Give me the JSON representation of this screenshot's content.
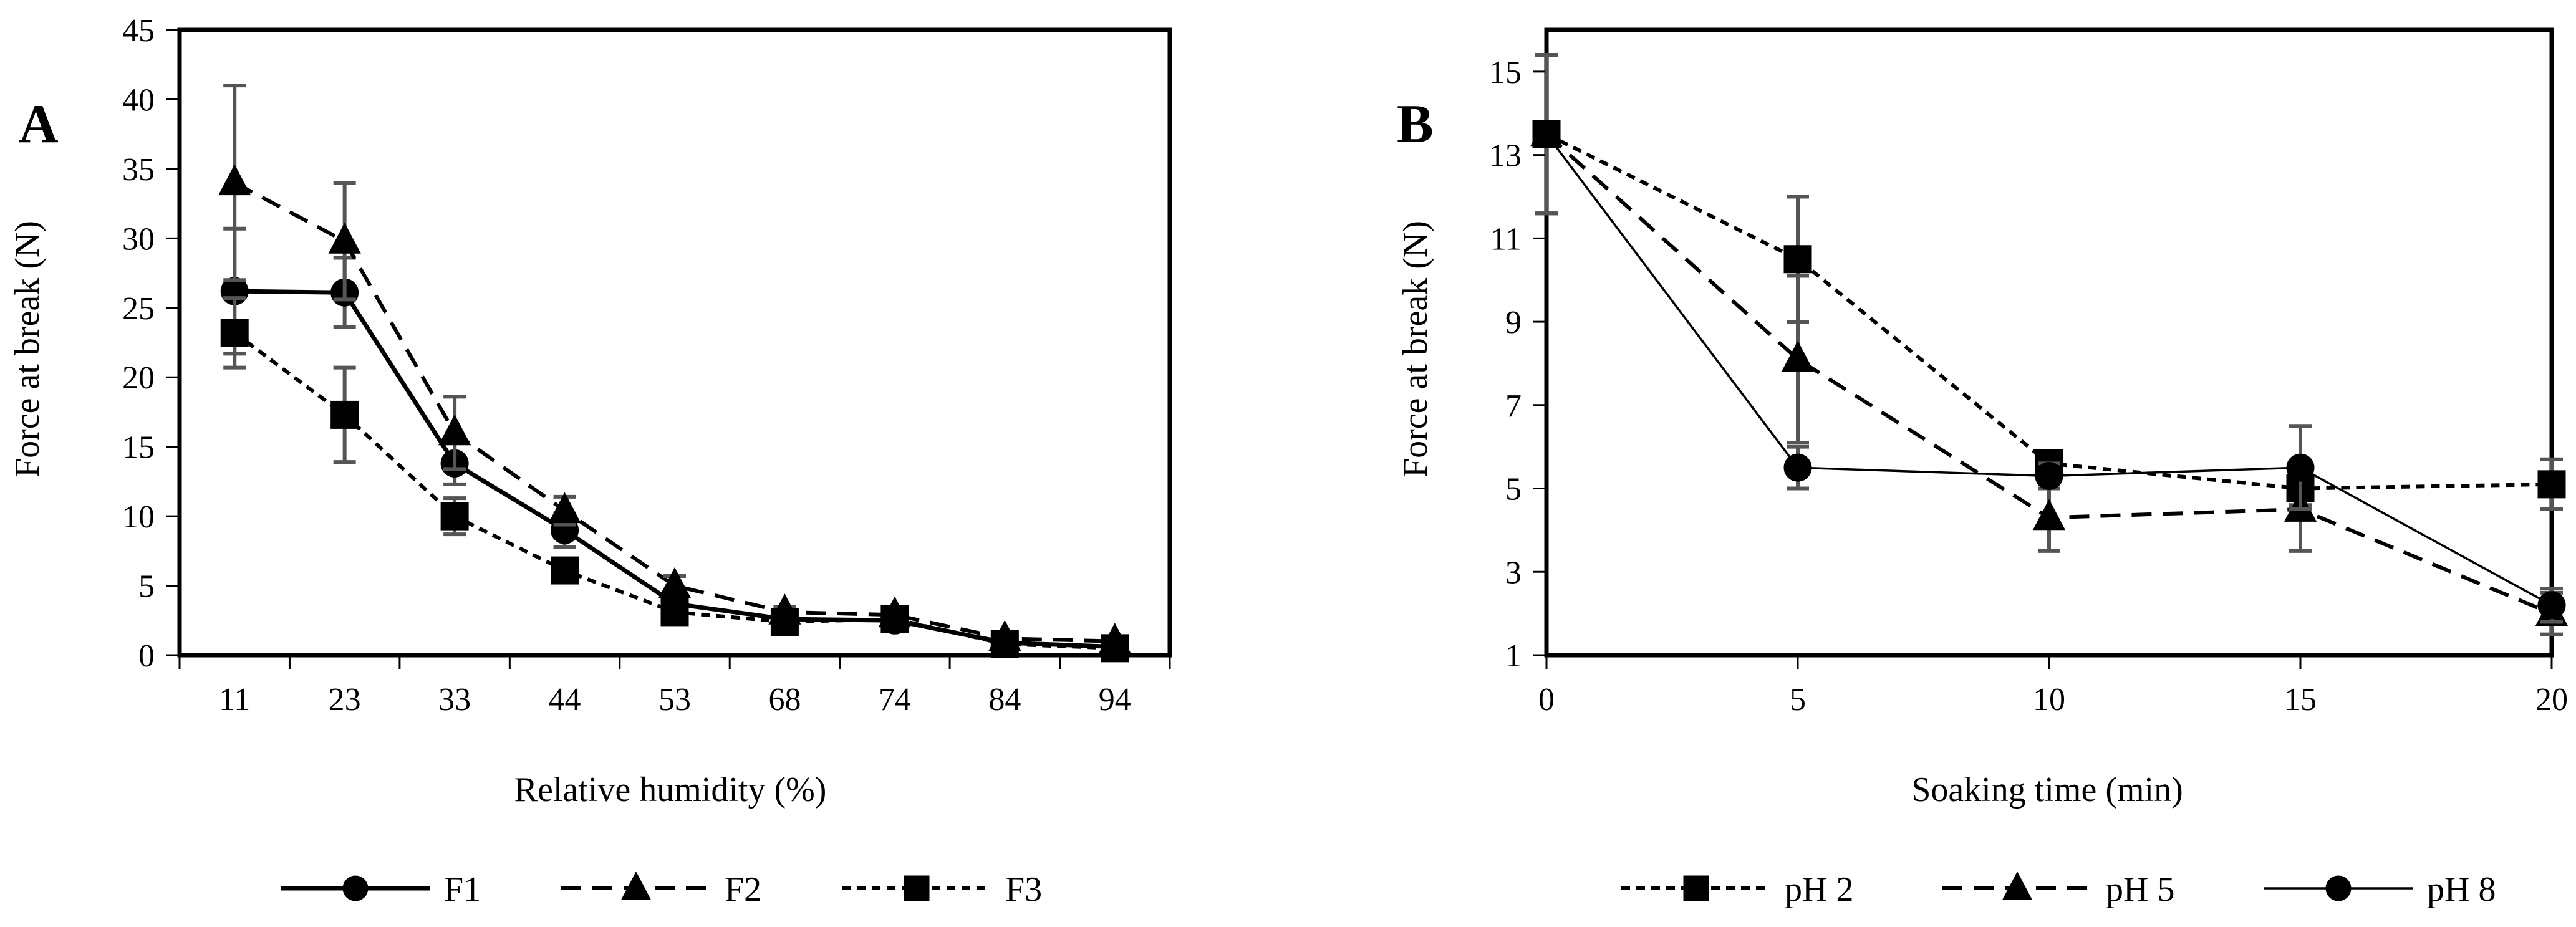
{
  "chart_data": [
    {
      "panel": "A",
      "type": "line",
      "xlabel": "Relative humidity (%)",
      "ylabel": "Force at break  (N)",
      "categories": [
        "11",
        "23",
        "33",
        "44",
        "53",
        "68",
        "74",
        "84",
        "94"
      ],
      "ylim": [
        0,
        45
      ],
      "yticks": [
        0,
        5,
        10,
        15,
        20,
        25,
        30,
        35,
        40,
        45
      ],
      "series": [
        {
          "name": "F1",
          "marker": "circle",
          "line": "solid",
          "values": [
            26.2,
            26.1,
            13.8,
            9.0,
            3.7,
            2.6,
            2.5,
            0.9,
            0.6
          ],
          "errors": [
            4.5,
            2.5,
            1.5,
            1.2,
            0.5,
            0.3,
            0.3,
            0.2,
            0.2
          ]
        },
        {
          "name": "F2",
          "marker": "triangle",
          "line": "dashed",
          "values": [
            34.0,
            29.8,
            16.0,
            10.4,
            5.0,
            3.1,
            2.9,
            1.2,
            1.0
          ],
          "errors": [
            7.0,
            4.2,
            2.6,
            1.0,
            0.7,
            0.4,
            0.5,
            0.3,
            0.2
          ]
        },
        {
          "name": "F3",
          "marker": "square",
          "line": "dotted",
          "values": [
            23.2,
            17.3,
            10.0,
            6.1,
            3.1,
            2.4,
            2.6,
            0.8,
            0.5
          ],
          "errors": [
            2.5,
            3.4,
            1.3,
            0.8,
            0.5,
            0.4,
            0.4,
            0.2,
            0.2
          ]
        }
      ]
    },
    {
      "panel": "B",
      "type": "line",
      "xlabel": "Soaking time (min)",
      "ylabel": "Force at break (N)",
      "x": [
        0,
        5,
        10,
        15,
        20
      ],
      "xticks": [
        0,
        5,
        10,
        15,
        20
      ],
      "xlim": [
        0,
        20
      ],
      "ylim": [
        1,
        16
      ],
      "yticks": [
        1,
        3,
        5,
        7,
        9,
        11,
        13,
        15
      ],
      "series": [
        {
          "name": "pH 2",
          "marker": "square",
          "line": "dotted",
          "values": [
            13.5,
            10.5,
            5.6,
            5.0,
            5.1
          ],
          "errors": [
            1.9,
            1.5,
            0.3,
            0.4,
            0.6
          ]
        },
        {
          "name": "pH 5",
          "marker": "triangle",
          "line": "dashed",
          "values": [
            13.5,
            8.1,
            4.3,
            4.5,
            2.0
          ],
          "errors": [
            1.9,
            2.0,
            0.8,
            1.0,
            0.5
          ]
        },
        {
          "name": "pH 8",
          "marker": "circle",
          "line": "thin-solid",
          "values": [
            13.5,
            5.5,
            5.3,
            5.5,
            2.2
          ],
          "errors": [
            1.9,
            0.5,
            0.3,
            1.0,
            0.4
          ]
        }
      ]
    }
  ]
}
